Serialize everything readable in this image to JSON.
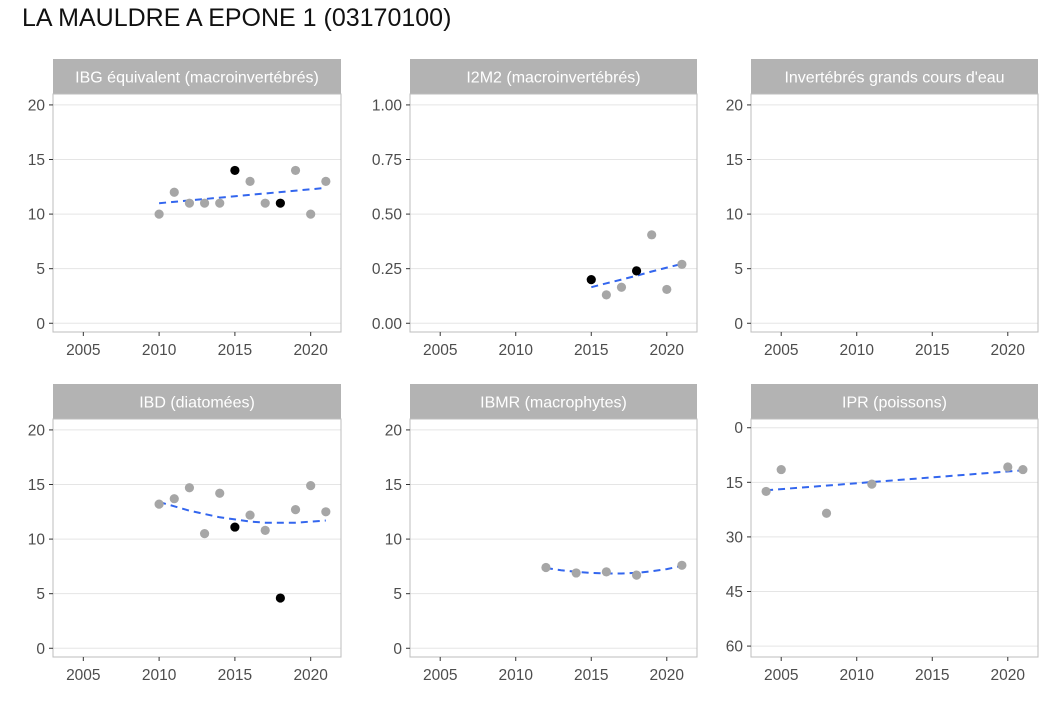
{
  "title": "LA MAULDRE A EPONE 1 (03170100)",
  "colors": {
    "strip_bg": "#b3b3b3",
    "panel_border": "#bdbdbd",
    "grid": "#e5e5e5",
    "point_default": "#a6a6a6",
    "point_highlight": "#000000",
    "trend": "#3366ee",
    "tick_text": "#4d4d4d"
  },
  "chart_data": [
    {
      "type": "scatter",
      "title": "IBG équivalent (macroinvertébrés)",
      "xlim": [
        2003,
        2022
      ],
      "x_ticks": [
        2005,
        2010,
        2015,
        2020
      ],
      "ylim": [
        -0.8,
        21
      ],
      "y_ticks": [
        0,
        5,
        10,
        15,
        20
      ],
      "y_tick_labels": [
        "0",
        "5",
        "10",
        "15",
        "20"
      ],
      "y_reversed": false,
      "points": [
        {
          "x": 2010,
          "y": 10,
          "highlight": false
        },
        {
          "x": 2011,
          "y": 12,
          "highlight": false
        },
        {
          "x": 2012,
          "y": 11,
          "highlight": false
        },
        {
          "x": 2013,
          "y": 11,
          "highlight": false
        },
        {
          "x": 2014,
          "y": 11,
          "highlight": false
        },
        {
          "x": 2015,
          "y": 14,
          "highlight": true
        },
        {
          "x": 2016,
          "y": 13,
          "highlight": false
        },
        {
          "x": 2017,
          "y": 11,
          "highlight": false
        },
        {
          "x": 2018,
          "y": 11,
          "highlight": true
        },
        {
          "x": 2019,
          "y": 14,
          "highlight": false
        },
        {
          "x": 2020,
          "y": 10,
          "highlight": false
        },
        {
          "x": 2021,
          "y": 13,
          "highlight": false
        }
      ],
      "trend": [
        [
          2010,
          11.0
        ],
        [
          2021,
          12.4
        ]
      ]
    },
    {
      "type": "scatter",
      "title": "I2M2 (macroinvertébrés)",
      "xlim": [
        2003,
        2022
      ],
      "x_ticks": [
        2005,
        2010,
        2015,
        2020
      ],
      "ylim": [
        -0.04,
        1.05
      ],
      "y_ticks": [
        0,
        0.25,
        0.5,
        0.75,
        1.0
      ],
      "y_tick_labels": [
        "0.00",
        "0.25",
        "0.50",
        "0.75",
        "1.00"
      ],
      "y_reversed": false,
      "points": [
        {
          "x": 2015,
          "y": 0.2,
          "highlight": true
        },
        {
          "x": 2016,
          "y": 0.13,
          "highlight": false
        },
        {
          "x": 2017,
          "y": 0.165,
          "highlight": false
        },
        {
          "x": 2018,
          "y": 0.24,
          "highlight": true
        },
        {
          "x": 2019,
          "y": 0.405,
          "highlight": false
        },
        {
          "x": 2020,
          "y": 0.155,
          "highlight": false
        },
        {
          "x": 2021,
          "y": 0.27,
          "highlight": false
        }
      ],
      "trend": [
        [
          2015,
          0.165
        ],
        [
          2016,
          0.183
        ],
        [
          2017,
          0.2
        ],
        [
          2018,
          0.218
        ],
        [
          2019,
          0.237
        ],
        [
          2020,
          0.255
        ],
        [
          2021,
          0.272
        ]
      ]
    },
    {
      "type": "scatter",
      "title": "Invertébrés grands cours d'eau",
      "xlim": [
        2003,
        2022
      ],
      "x_ticks": [
        2005,
        2010,
        2015,
        2020
      ],
      "ylim": [
        -0.8,
        21
      ],
      "y_ticks": [
        0,
        5,
        10,
        15,
        20
      ],
      "y_tick_labels": [
        "0",
        "5",
        "10",
        "15",
        "20"
      ],
      "y_reversed": false,
      "points": [],
      "trend": []
    },
    {
      "type": "scatter",
      "title": "IBD (diatomées)",
      "xlim": [
        2003,
        2022
      ],
      "x_ticks": [
        2005,
        2010,
        2015,
        2020
      ],
      "ylim": [
        -0.8,
        21
      ],
      "y_ticks": [
        0,
        5,
        10,
        15,
        20
      ],
      "y_tick_labels": [
        "0",
        "5",
        "10",
        "15",
        "20"
      ],
      "y_reversed": false,
      "points": [
        {
          "x": 2010,
          "y": 13.2,
          "highlight": false
        },
        {
          "x": 2011,
          "y": 13.7,
          "highlight": false
        },
        {
          "x": 2012,
          "y": 14.7,
          "highlight": false
        },
        {
          "x": 2013,
          "y": 10.5,
          "highlight": false
        },
        {
          "x": 2014,
          "y": 14.2,
          "highlight": false
        },
        {
          "x": 2015,
          "y": 11.1,
          "highlight": true
        },
        {
          "x": 2016,
          "y": 12.2,
          "highlight": false
        },
        {
          "x": 2017,
          "y": 10.8,
          "highlight": false
        },
        {
          "x": 2018,
          "y": 4.6,
          "highlight": true
        },
        {
          "x": 2019,
          "y": 12.7,
          "highlight": false
        },
        {
          "x": 2020,
          "y": 14.9,
          "highlight": false
        },
        {
          "x": 2021,
          "y": 12.5,
          "highlight": false
        }
      ],
      "trend": [
        [
          2010,
          13.4
        ],
        [
          2011,
          13.0
        ],
        [
          2012,
          12.6
        ],
        [
          2013,
          12.3
        ],
        [
          2014,
          12.0
        ],
        [
          2015,
          11.8
        ],
        [
          2016,
          11.6
        ],
        [
          2017,
          11.5
        ],
        [
          2018,
          11.5
        ],
        [
          2019,
          11.5
        ],
        [
          2020,
          11.6
        ],
        [
          2021,
          11.7
        ]
      ]
    },
    {
      "type": "scatter",
      "title": "IBMR (macrophytes)",
      "xlim": [
        2003,
        2022
      ],
      "x_ticks": [
        2005,
        2010,
        2015,
        2020
      ],
      "ylim": [
        -0.8,
        21
      ],
      "y_ticks": [
        0,
        5,
        10,
        15,
        20
      ],
      "y_tick_labels": [
        "0",
        "5",
        "10",
        "15",
        "20"
      ],
      "y_reversed": false,
      "points": [
        {
          "x": 2012,
          "y": 7.4,
          "highlight": false
        },
        {
          "x": 2014,
          "y": 6.9,
          "highlight": false
        },
        {
          "x": 2016,
          "y": 7.0,
          "highlight": false
        },
        {
          "x": 2018,
          "y": 6.7,
          "highlight": false
        },
        {
          "x": 2021,
          "y": 7.6,
          "highlight": false
        }
      ],
      "trend": [
        [
          2012,
          7.35
        ],
        [
          2013,
          7.15
        ],
        [
          2014,
          7.0
        ],
        [
          2015,
          6.9
        ],
        [
          2016,
          6.85
        ],
        [
          2017,
          6.85
        ],
        [
          2018,
          6.9
        ],
        [
          2019,
          7.05
        ],
        [
          2020,
          7.25
        ],
        [
          2021,
          7.55
        ]
      ]
    },
    {
      "type": "scatter",
      "title": "IPR (poissons)",
      "xlim": [
        2003,
        2022
      ],
      "x_ticks": [
        2005,
        2010,
        2015,
        2020
      ],
      "ylim": [
        -2.4,
        63
      ],
      "y_ticks": [
        0,
        15,
        30,
        45,
        60
      ],
      "y_tick_labels": [
        "0",
        "15",
        "30",
        "45",
        "60"
      ],
      "y_reversed": true,
      "points": [
        {
          "x": 2004,
          "y": 17.5,
          "highlight": false
        },
        {
          "x": 2005,
          "y": 11.5,
          "highlight": false
        },
        {
          "x": 2008,
          "y": 23.5,
          "highlight": false
        },
        {
          "x": 2011,
          "y": 15.5,
          "highlight": false
        },
        {
          "x": 2020,
          "y": 10.8,
          "highlight": false
        },
        {
          "x": 2021,
          "y": 11.5,
          "highlight": false
        }
      ],
      "trend": [
        [
          2004,
          17.2
        ],
        [
          2021,
          11.7
        ]
      ]
    }
  ]
}
